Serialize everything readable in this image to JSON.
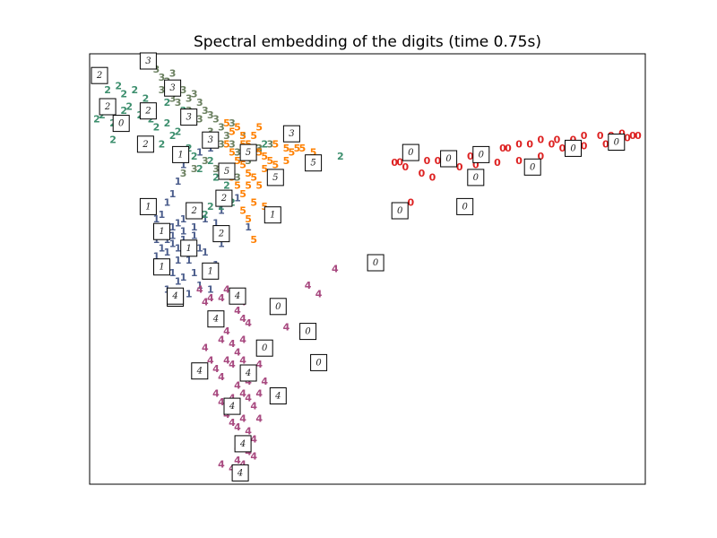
{
  "chart_data": {
    "type": "scatter",
    "title": "Spectral embedding of the digits (time 0.75s)",
    "xlabel": "",
    "ylabel": "",
    "xlim": [
      0,
      1
    ],
    "ylim": [
      0,
      1
    ],
    "grid": false,
    "legend": "none",
    "axis_ticks": false,
    "series": [
      {
        "label": "0",
        "color": "#dd2222",
        "points": [
          [
            0.55,
            0.755
          ],
          [
            0.56,
            0.757
          ],
          [
            0.61,
            0.76
          ],
          [
            0.63,
            0.76
          ],
          [
            0.66,
            0.77
          ],
          [
            0.69,
            0.77
          ],
          [
            0.72,
            0.78
          ],
          [
            0.75,
            0.79
          ],
          [
            0.78,
            0.8
          ],
          [
            0.8,
            0.8
          ],
          [
            0.82,
            0.81
          ],
          [
            0.85,
            0.81
          ],
          [
            0.88,
            0.81
          ],
          [
            0.9,
            0.82
          ],
          [
            0.93,
            0.82
          ],
          [
            0.95,
            0.82
          ],
          [
            0.97,
            0.825
          ],
          [
            0.99,
            0.82
          ],
          [
            1.0,
            0.82
          ],
          [
            0.6,
            0.73
          ],
          [
            0.62,
            0.72
          ],
          [
            0.67,
            0.745
          ],
          [
            0.7,
            0.75
          ],
          [
            0.74,
            0.755
          ],
          [
            0.78,
            0.76
          ],
          [
            0.82,
            0.77
          ],
          [
            0.86,
            0.79
          ],
          [
            0.9,
            0.795
          ],
          [
            0.94,
            0.8
          ],
          [
            0.57,
            0.745
          ],
          [
            0.58,
            0.66
          ],
          [
            0.76,
            0.79
          ],
          [
            0.84,
            0.8
          ],
          [
            0.96,
            0.81
          ],
          [
            0.98,
            0.815
          ]
        ]
      },
      {
        "label": "1",
        "color": "#4b5d8c",
        "points": [
          [
            0.13,
            0.66
          ],
          [
            0.15,
            0.71
          ],
          [
            0.14,
            0.68
          ],
          [
            0.12,
            0.63
          ],
          [
            0.11,
            0.62
          ],
          [
            0.12,
            0.6
          ],
          [
            0.14,
            0.6
          ],
          [
            0.15,
            0.61
          ],
          [
            0.16,
            0.62
          ],
          [
            0.17,
            0.63
          ],
          [
            0.11,
            0.57
          ],
          [
            0.12,
            0.55
          ],
          [
            0.13,
            0.54
          ],
          [
            0.14,
            0.56
          ],
          [
            0.15,
            0.55
          ],
          [
            0.16,
            0.57
          ],
          [
            0.17,
            0.56
          ],
          [
            0.18,
            0.58
          ],
          [
            0.19,
            0.55
          ],
          [
            0.2,
            0.54
          ],
          [
            0.13,
            0.5
          ],
          [
            0.14,
            0.49
          ],
          [
            0.15,
            0.47
          ],
          [
            0.16,
            0.48
          ],
          [
            0.18,
            0.49
          ],
          [
            0.2,
            0.5
          ],
          [
            0.22,
            0.51
          ],
          [
            0.23,
            0.56
          ],
          [
            0.24,
            0.58
          ],
          [
            0.22,
            0.61
          ],
          [
            0.23,
            0.64
          ],
          [
            0.26,
            0.67
          ],
          [
            0.28,
            0.6
          ],
          [
            0.13,
            0.45
          ],
          [
            0.17,
            0.44
          ],
          [
            0.19,
            0.46
          ],
          [
            0.21,
            0.45
          ],
          [
            0.15,
            0.52
          ],
          [
            0.17,
            0.52
          ],
          [
            0.12,
            0.51
          ],
          [
            0.14,
            0.58
          ],
          [
            0.18,
            0.6
          ],
          [
            0.2,
            0.62
          ],
          [
            0.16,
            0.75
          ],
          [
            0.19,
            0.78
          ],
          [
            0.21,
            0.79
          ],
          [
            0.15,
            0.43
          ],
          [
            0.11,
            0.53
          ],
          [
            0.13,
            0.57
          ],
          [
            0.16,
            0.59
          ]
        ]
      },
      {
        "label": "2",
        "color": "#3d8f6e",
        "points": [
          [
            0.0,
            0.96
          ],
          [
            0.02,
            0.93
          ],
          [
            0.03,
            0.9
          ],
          [
            0.05,
            0.92
          ],
          [
            0.07,
            0.93
          ],
          [
            0.06,
            0.89
          ],
          [
            0.08,
            0.87
          ],
          [
            0.1,
            0.86
          ],
          [
            0.11,
            0.84
          ],
          [
            0.13,
            0.85
          ],
          [
            0.14,
            0.82
          ],
          [
            0.01,
            0.87
          ],
          [
            0.0,
            0.86
          ],
          [
            0.03,
            0.85
          ],
          [
            0.12,
            0.8
          ],
          [
            0.09,
            0.79
          ],
          [
            0.03,
            0.81
          ],
          [
            0.15,
            0.83
          ],
          [
            0.17,
            0.79
          ],
          [
            0.18,
            0.77
          ],
          [
            0.19,
            0.74
          ],
          [
            0.21,
            0.76
          ],
          [
            0.22,
            0.72
          ],
          [
            0.24,
            0.7
          ],
          [
            0.25,
            0.66
          ],
          [
            0.23,
            0.65
          ],
          [
            0.2,
            0.63
          ],
          [
            0.21,
            0.65
          ],
          [
            0.3,
            0.79
          ],
          [
            0.31,
            0.8
          ],
          [
            0.45,
            0.77
          ],
          [
            0.04,
            0.94
          ],
          [
            0.09,
            0.91
          ],
          [
            0.05,
            0.88
          ],
          [
            0.16,
            0.88
          ],
          [
            0.13,
            0.9
          ]
        ]
      },
      {
        "label": "3",
        "color": "#6b8060",
        "points": [
          [
            0.11,
            0.98
          ],
          [
            0.12,
            0.96
          ],
          [
            0.13,
            0.95
          ],
          [
            0.14,
            0.97
          ],
          [
            0.15,
            0.94
          ],
          [
            0.16,
            0.93
          ],
          [
            0.17,
            0.91
          ],
          [
            0.18,
            0.92
          ],
          [
            0.19,
            0.9
          ],
          [
            0.2,
            0.88
          ],
          [
            0.21,
            0.87
          ],
          [
            0.22,
            0.86
          ],
          [
            0.23,
            0.84
          ],
          [
            0.24,
            0.82
          ],
          [
            0.25,
            0.8
          ],
          [
            0.26,
            0.78
          ],
          [
            0.27,
            0.77
          ],
          [
            0.28,
            0.76
          ],
          [
            0.3,
            0.79
          ],
          [
            0.32,
            0.8
          ],
          [
            0.15,
            0.9
          ],
          [
            0.17,
            0.88
          ],
          [
            0.19,
            0.86
          ],
          [
            0.21,
            0.83
          ],
          [
            0.23,
            0.8
          ],
          [
            0.2,
            0.76
          ],
          [
            0.22,
            0.74
          ],
          [
            0.18,
            0.74
          ],
          [
            0.16,
            0.73
          ],
          [
            0.24,
            0.74
          ],
          [
            0.26,
            0.72
          ],
          [
            0.12,
            0.93
          ],
          [
            0.14,
            0.91
          ],
          [
            0.25,
            0.85
          ],
          [
            0.27,
            0.82
          ]
        ]
      },
      {
        "label": "4",
        "color": "#a84a80",
        "points": [
          [
            0.44,
            0.5
          ],
          [
            0.39,
            0.46
          ],
          [
            0.41,
            0.44
          ],
          [
            0.38,
            0.35
          ],
          [
            0.35,
            0.36
          ],
          [
            0.27,
            0.42
          ],
          [
            0.26,
            0.4
          ],
          [
            0.27,
            0.38
          ],
          [
            0.28,
            0.37
          ],
          [
            0.24,
            0.35
          ],
          [
            0.23,
            0.33
          ],
          [
            0.25,
            0.32
          ],
          [
            0.27,
            0.33
          ],
          [
            0.26,
            0.3
          ],
          [
            0.24,
            0.28
          ],
          [
            0.25,
            0.27
          ],
          [
            0.27,
            0.28
          ],
          [
            0.28,
            0.26
          ],
          [
            0.29,
            0.25
          ],
          [
            0.26,
            0.22
          ],
          [
            0.27,
            0.2
          ],
          [
            0.25,
            0.19
          ],
          [
            0.28,
            0.19
          ],
          [
            0.29,
            0.17
          ],
          [
            0.27,
            0.14
          ],
          [
            0.26,
            0.12
          ],
          [
            0.28,
            0.11
          ],
          [
            0.27,
            0.09
          ],
          [
            0.26,
            0.07
          ],
          [
            0.28,
            0.06
          ],
          [
            0.29,
            0.05
          ],
          [
            0.23,
            0.03
          ],
          [
            0.27,
            0.03
          ],
          [
            0.25,
            0.02
          ],
          [
            0.2,
            0.31
          ],
          [
            0.21,
            0.28
          ],
          [
            0.22,
            0.26
          ],
          [
            0.23,
            0.24
          ],
          [
            0.22,
            0.2
          ],
          [
            0.23,
            0.18
          ],
          [
            0.24,
            0.15
          ],
          [
            0.25,
            0.13
          ],
          [
            0.3,
            0.2
          ],
          [
            0.31,
            0.23
          ],
          [
            0.3,
            0.14
          ],
          [
            0.24,
            0.45
          ],
          [
            0.23,
            0.43
          ],
          [
            0.21,
            0.43
          ],
          [
            0.2,
            0.42
          ],
          [
            0.19,
            0.45
          ],
          [
            0.3,
            0.27
          ],
          [
            0.28,
            0.23
          ],
          [
            0.26,
            0.16
          ],
          [
            0.26,
            0.04
          ],
          [
            0.29,
            0.09
          ]
        ]
      },
      {
        "label": "5",
        "color": "#ff8000",
        "points": [
          [
            0.24,
            0.85
          ],
          [
            0.25,
            0.83
          ],
          [
            0.26,
            0.84
          ],
          [
            0.27,
            0.82
          ],
          [
            0.28,
            0.8
          ],
          [
            0.29,
            0.79
          ],
          [
            0.3,
            0.78
          ],
          [
            0.31,
            0.77
          ],
          [
            0.33,
            0.8
          ],
          [
            0.35,
            0.79
          ],
          [
            0.36,
            0.78
          ],
          [
            0.37,
            0.79
          ],
          [
            0.38,
            0.79
          ],
          [
            0.4,
            0.78
          ],
          [
            0.25,
            0.78
          ],
          [
            0.26,
            0.76
          ],
          [
            0.27,
            0.75
          ],
          [
            0.28,
            0.73
          ],
          [
            0.29,
            0.72
          ],
          [
            0.3,
            0.7
          ],
          [
            0.31,
            0.74
          ],
          [
            0.32,
            0.76
          ],
          [
            0.25,
            0.72
          ],
          [
            0.26,
            0.7
          ],
          [
            0.27,
            0.68
          ],
          [
            0.28,
            0.7
          ],
          [
            0.29,
            0.66
          ],
          [
            0.27,
            0.64
          ],
          [
            0.28,
            0.62
          ],
          [
            0.29,
            0.57
          ],
          [
            0.31,
            0.65
          ],
          [
            0.33,
            0.75
          ],
          [
            0.35,
            0.76
          ],
          [
            0.28,
            0.78
          ],
          [
            0.29,
            0.82
          ],
          [
            0.3,
            0.84
          ],
          [
            0.27,
            0.8
          ],
          [
            0.24,
            0.8
          ]
        ]
      }
    ],
    "thumbnails": [
      {
        "digit": "0",
        "x": 0.58,
        "y": 0.78
      },
      {
        "digit": "0",
        "x": 0.65,
        "y": 0.765
      },
      {
        "digit": "0",
        "x": 0.7,
        "y": 0.72
      },
      {
        "digit": "0",
        "x": 0.71,
        "y": 0.775
      },
      {
        "digit": "0",
        "x": 0.805,
        "y": 0.745
      },
      {
        "digit": "0",
        "x": 0.88,
        "y": 0.79
      },
      {
        "digit": "0",
        "x": 0.96,
        "y": 0.805
      },
      {
        "digit": "0",
        "x": 0.56,
        "y": 0.64
      },
      {
        "digit": "0",
        "x": 0.68,
        "y": 0.65
      },
      {
        "digit": "0",
        "x": 0.515,
        "y": 0.515
      },
      {
        "digit": "0",
        "x": 0.335,
        "y": 0.41
      },
      {
        "digit": "0",
        "x": 0.39,
        "y": 0.35
      },
      {
        "digit": "0",
        "x": 0.31,
        "y": 0.31
      },
      {
        "digit": "0",
        "x": 0.41,
        "y": 0.275
      },
      {
        "digit": "0",
        "x": 0.045,
        "y": 0.85
      },
      {
        "digit": "1",
        "x": 0.095,
        "y": 0.65
      },
      {
        "digit": "1",
        "x": 0.155,
        "y": 0.775
      },
      {
        "digit": "1",
        "x": 0.12,
        "y": 0.59
      },
      {
        "digit": "1",
        "x": 0.17,
        "y": 0.55
      },
      {
        "digit": "1",
        "x": 0.12,
        "y": 0.505
      },
      {
        "digit": "1",
        "x": 0.21,
        "y": 0.495
      },
      {
        "digit": "1",
        "x": 0.145,
        "y": 0.43
      },
      {
        "digit": "1",
        "x": 0.325,
        "y": 0.63
      },
      {
        "digit": "2",
        "x": 0.005,
        "y": 0.965
      },
      {
        "digit": "2",
        "x": 0.02,
        "y": 0.89
      },
      {
        "digit": "2",
        "x": 0.095,
        "y": 0.88
      },
      {
        "digit": "2",
        "x": 0.09,
        "y": 0.8
      },
      {
        "digit": "2",
        "x": 0.18,
        "y": 0.64
      },
      {
        "digit": "2",
        "x": 0.235,
        "y": 0.67
      },
      {
        "digit": "2",
        "x": 0.23,
        "y": 0.585
      },
      {
        "digit": "3",
        "x": 0.095,
        "y": 1.0
      },
      {
        "digit": "3",
        "x": 0.14,
        "y": 0.935
      },
      {
        "digit": "3",
        "x": 0.17,
        "y": 0.865
      },
      {
        "digit": "3",
        "x": 0.21,
        "y": 0.81
      },
      {
        "digit": "3",
        "x": 0.36,
        "y": 0.825
      },
      {
        "digit": "5",
        "x": 0.28,
        "y": 0.78
      },
      {
        "digit": "5",
        "x": 0.24,
        "y": 0.735
      },
      {
        "digit": "5",
        "x": 0.33,
        "y": 0.72
      },
      {
        "digit": "5",
        "x": 0.4,
        "y": 0.755
      },
      {
        "digit": "4",
        "x": 0.26,
        "y": 0.435
      },
      {
        "digit": "4",
        "x": 0.22,
        "y": 0.38
      },
      {
        "digit": "4",
        "x": 0.19,
        "y": 0.255
      },
      {
        "digit": "4",
        "x": 0.28,
        "y": 0.25
      },
      {
        "digit": "4",
        "x": 0.25,
        "y": 0.17
      },
      {
        "digit": "4",
        "x": 0.335,
        "y": 0.195
      },
      {
        "digit": "4",
        "x": 0.27,
        "y": 0.08
      },
      {
        "digit": "4",
        "x": 0.265,
        "y": 0.01
      },
      {
        "digit": "4",
        "x": 0.145,
        "y": 0.435
      }
    ]
  }
}
